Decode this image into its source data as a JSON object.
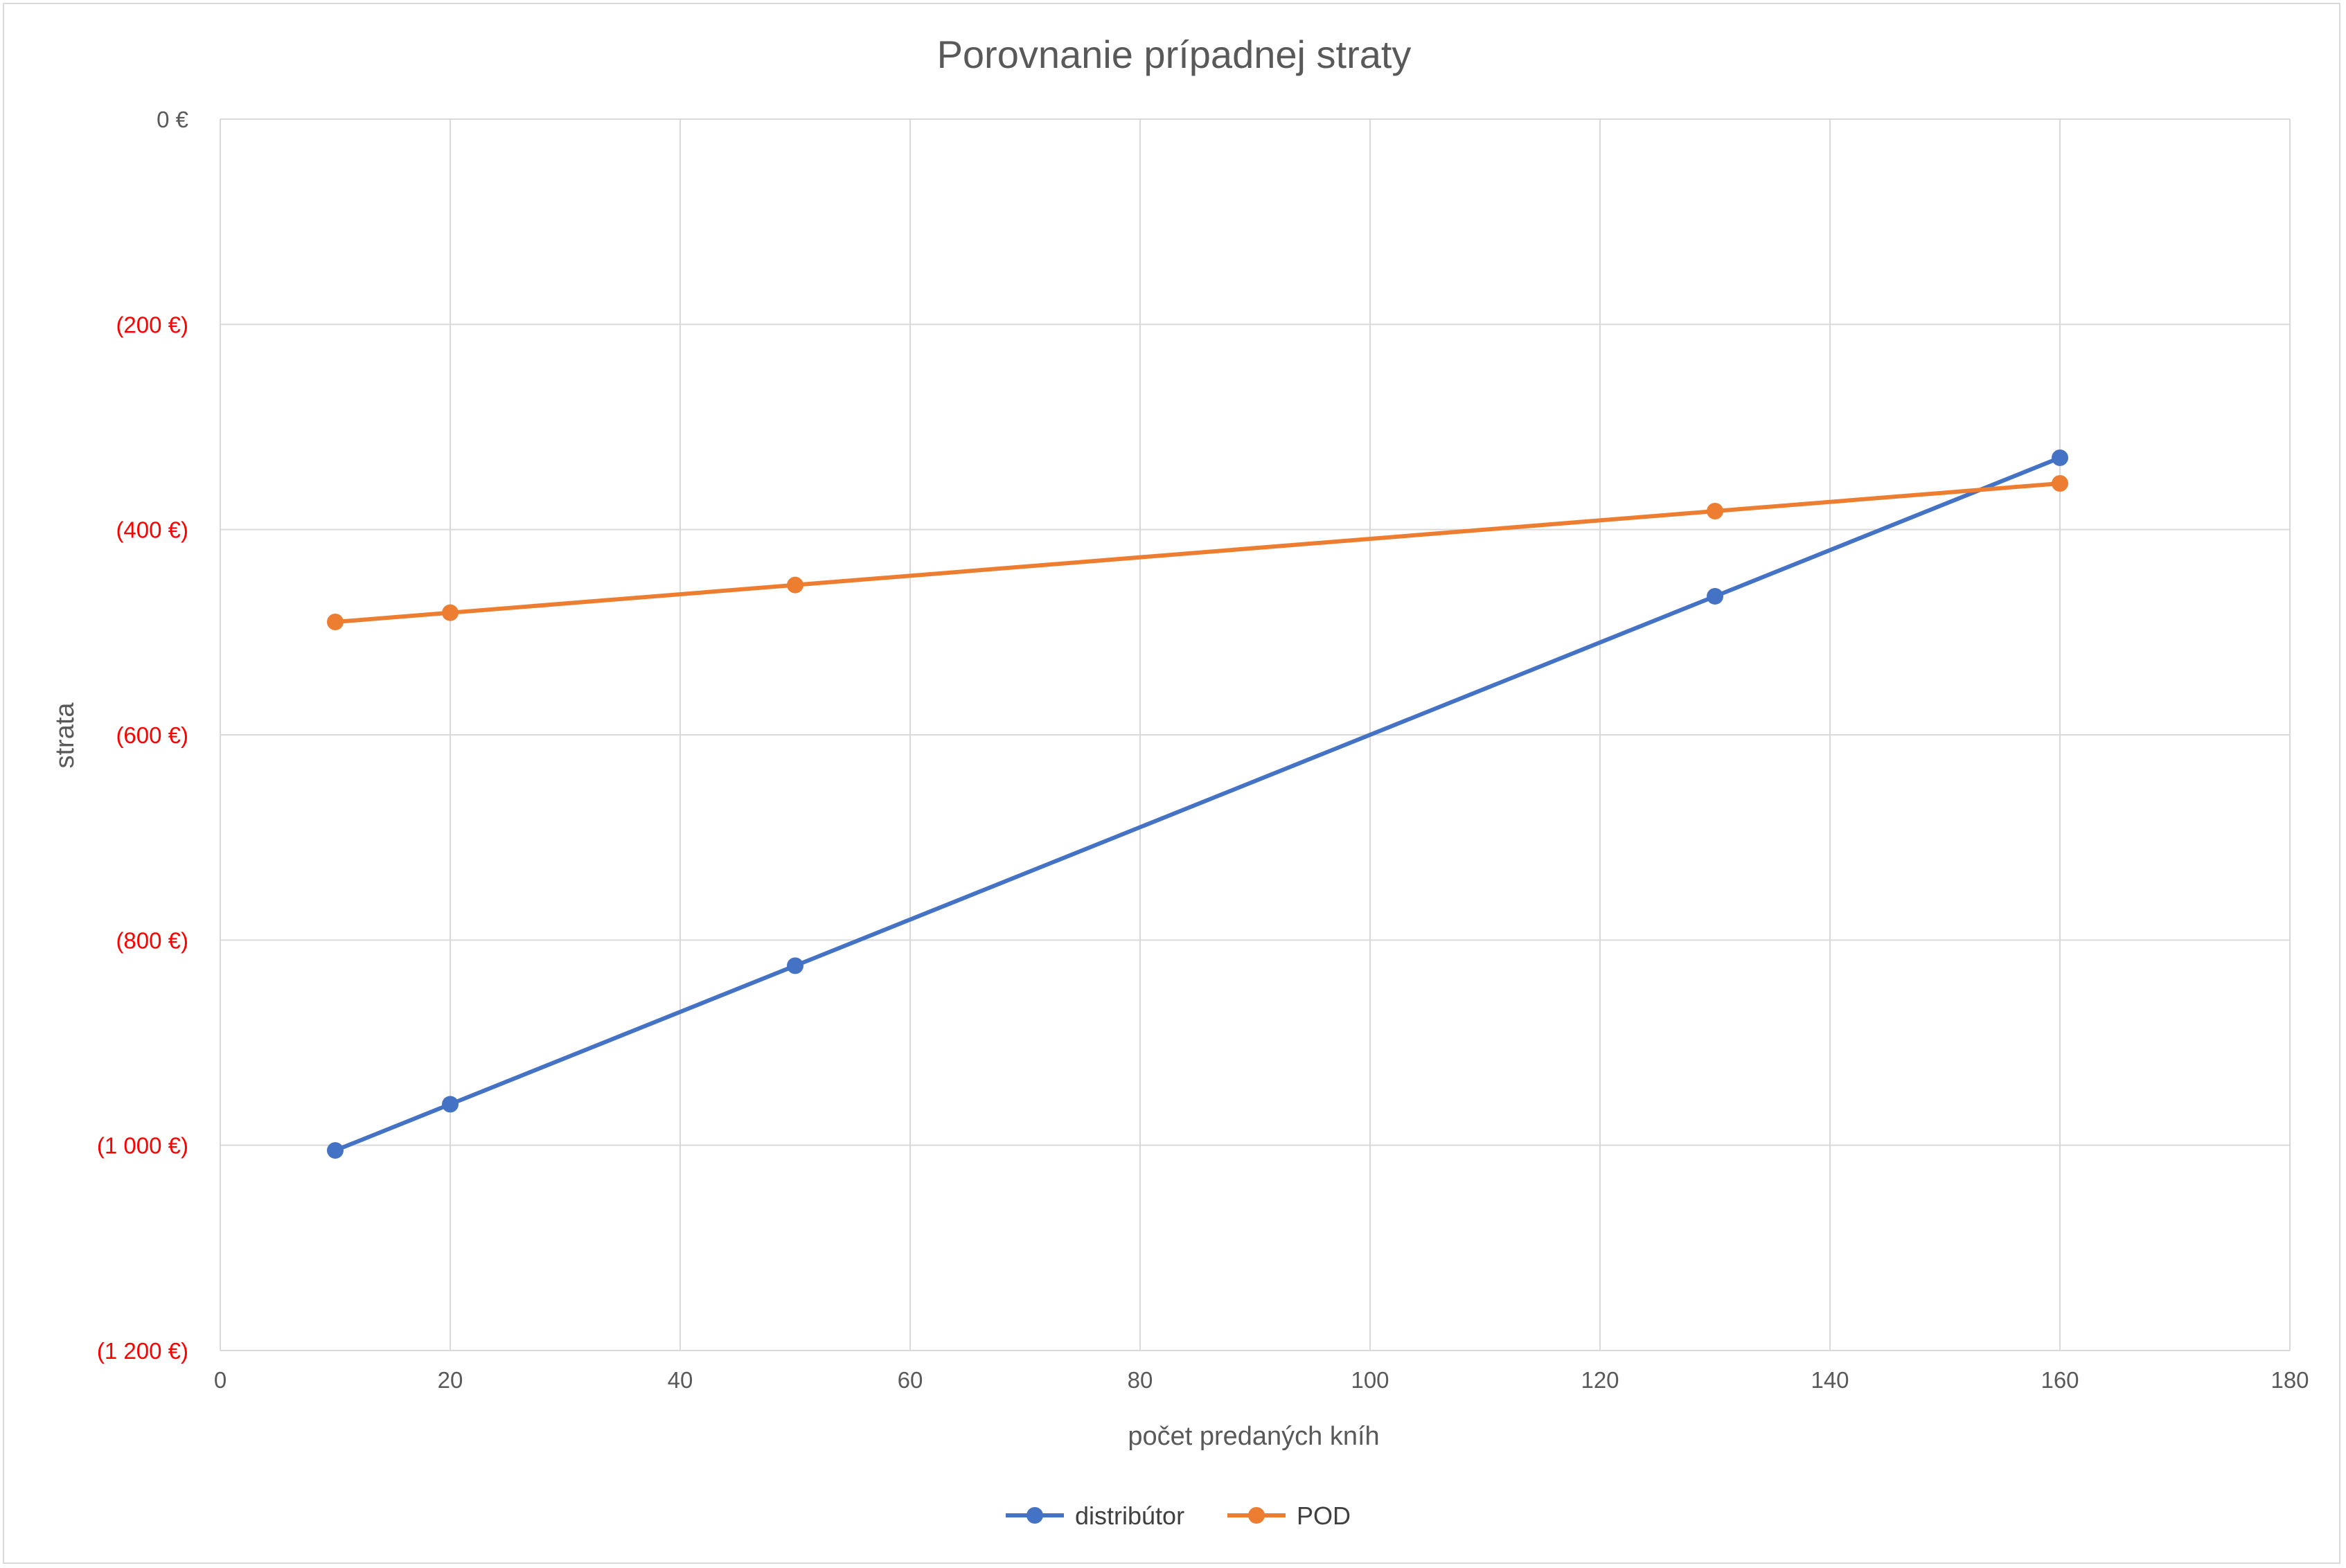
{
  "chart_data": {
    "type": "line",
    "title": "Porovnanie prípadnej straty",
    "xlabel": "počet predaných kníh",
    "ylabel": "strata",
    "xlim": [
      0,
      180
    ],
    "ylim": [
      -1200,
      0
    ],
    "x_ticks": [
      0,
      20,
      40,
      60,
      80,
      100,
      120,
      140,
      160,
      180
    ],
    "y_ticks": [
      0,
      -200,
      -400,
      -600,
      -800,
      -1000,
      -1200
    ],
    "y_tick_labels": [
      "0 €",
      "(200 €)",
      "(400 €)",
      "(600 €)",
      "(800 €)",
      "(1 000 €)",
      "(1 200 €)"
    ],
    "y_tick_colors": [
      "#595959",
      "#ff0000",
      "#ff0000",
      "#ff0000",
      "#ff0000",
      "#ff0000",
      "#ff0000"
    ],
    "grid": true,
    "legend_position": "bottom",
    "series": [
      {
        "name": "distribútor",
        "color": "#4472c4",
        "x": [
          10,
          20,
          50,
          130,
          160
        ],
        "y": [
          -1005,
          -960,
          -825,
          -465,
          -330
        ]
      },
      {
        "name": "POD",
        "color": "#ed7d31",
        "x": [
          10,
          20,
          50,
          130,
          160
        ],
        "y": [
          -490,
          -481,
          -454,
          -382,
          -355
        ]
      }
    ]
  }
}
